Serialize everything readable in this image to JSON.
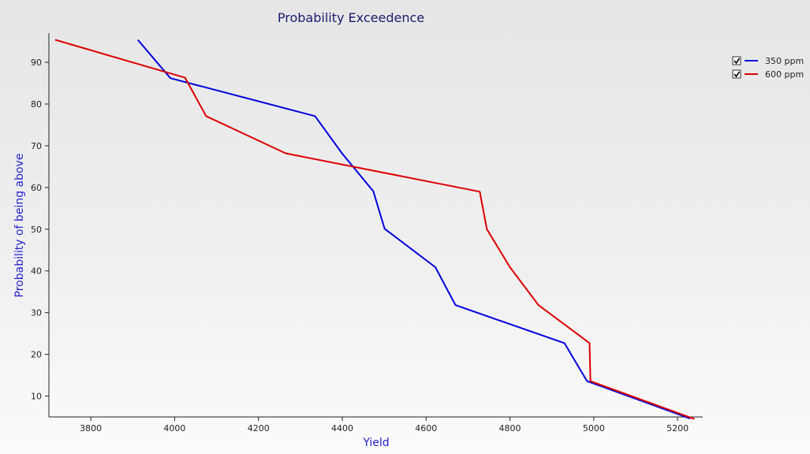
{
  "chart_data": {
    "type": "line",
    "title": "Probability Exceedence",
    "xlabel": "Yield",
    "ylabel": "Probability of being above",
    "xlim": [
      3700,
      5260
    ],
    "ylim": [
      5,
      97
    ],
    "xticks": [
      3800,
      4000,
      4200,
      4400,
      4600,
      4800,
      5000,
      5200
    ],
    "yticks": [
      10,
      20,
      30,
      40,
      50,
      60,
      70,
      80,
      90
    ],
    "grid": false,
    "legend_position": "top-right",
    "series": [
      {
        "name": "350 ppm",
        "color": "#0000dd",
        "checked": true,
        "x": [
          3912,
          3990,
          4335,
          4400,
          4474,
          4501,
          4622,
          4670,
          4930,
          4984,
          5230
        ],
        "y": [
          95.4,
          86.2,
          77.1,
          68.1,
          59.1,
          50.1,
          40.9,
          31.8,
          22.7,
          13.6,
          4.6
        ]
      },
      {
        "name": "600 ppm",
        "color": "#dd0000",
        "checked": true,
        "x": [
          3715,
          4025,
          4075,
          4265,
          4728,
          4745,
          4800,
          4868,
          4990,
          4992,
          5240
        ],
        "y": [
          95.4,
          86.3,
          77.1,
          68.2,
          59.0,
          50.0,
          40.9,
          31.8,
          22.7,
          13.6,
          4.5
        ]
      }
    ]
  }
}
